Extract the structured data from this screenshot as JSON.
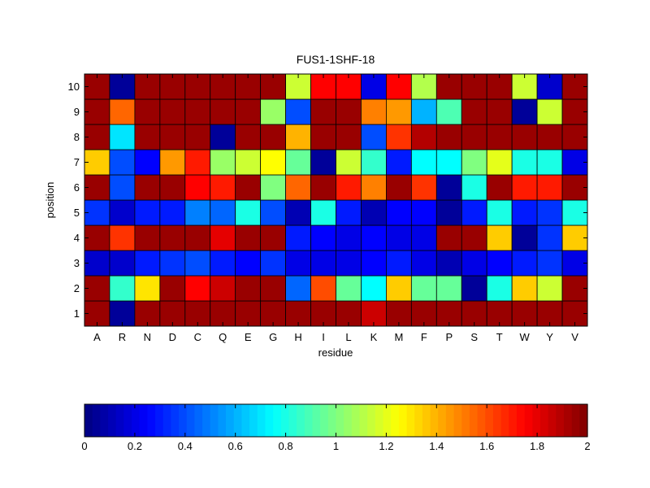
{
  "chart_data": {
    "type": "heatmap",
    "title": "FUS1-1SHF-18",
    "xlabel": "residue",
    "ylabel": "position",
    "x_categories": [
      "A",
      "R",
      "N",
      "D",
      "C",
      "Q",
      "E",
      "G",
      "H",
      "I",
      "L",
      "K",
      "M",
      "F",
      "P",
      "S",
      "T",
      "W",
      "Y",
      "V"
    ],
    "y_categories": [
      "1",
      "2",
      "3",
      "4",
      "5",
      "6",
      "7",
      "8",
      "9",
      "10"
    ],
    "values": [
      [
        1.95,
        0.05,
        1.95,
        1.95,
        1.95,
        1.95,
        1.95,
        1.95,
        1.95,
        1.95,
        1.95,
        1.85,
        1.95,
        1.95,
        1.95,
        1.95,
        1.95,
        1.95,
        1.95,
        1.95
      ],
      [
        1.95,
        0.85,
        1.3,
        1.95,
        1.75,
        1.85,
        1.95,
        1.95,
        0.45,
        1.6,
        0.95,
        0.75,
        1.35,
        0.95,
        0.95,
        0.05,
        0.8,
        1.35,
        1.15,
        1.95
      ],
      [
        0.15,
        0.15,
        0.3,
        0.35,
        0.4,
        0.3,
        0.25,
        0.35,
        0.2,
        0.2,
        0.2,
        0.25,
        0.3,
        0.2,
        0.1,
        0.2,
        0.25,
        0.3,
        0.35,
        0.2
      ],
      [
        1.95,
        1.65,
        1.95,
        1.95,
        1.95,
        1.8,
        1.95,
        1.95,
        0.3,
        0.25,
        0.2,
        0.25,
        0.2,
        0.2,
        1.95,
        1.95,
        1.35,
        0.05,
        0.35,
        1.35
      ],
      [
        0.35,
        0.15,
        0.3,
        0.3,
        0.5,
        0.45,
        0.8,
        0.4,
        0.1,
        0.8,
        0.3,
        0.1,
        0.25,
        0.25,
        0.05,
        0.3,
        0.8,
        0.3,
        0.35,
        0.8
      ],
      [
        1.95,
        0.4,
        1.95,
        1.95,
        1.75,
        1.7,
        1.95,
        1.0,
        1.55,
        1.95,
        1.7,
        1.5,
        1.95,
        1.65,
        0.05,
        0.8,
        1.95,
        1.7,
        1.7,
        1.95
      ],
      [
        1.35,
        0.4,
        0.25,
        1.45,
        1.7,
        1.05,
        1.15,
        1.25,
        0.95,
        0.05,
        1.15,
        0.85,
        0.3,
        0.75,
        0.75,
        1.0,
        1.2,
        0.8,
        0.8,
        0.2
      ],
      [
        1.95,
        0.7,
        1.95,
        1.95,
        1.95,
        0.05,
        1.95,
        1.95,
        1.4,
        1.95,
        1.95,
        0.4,
        1.65,
        1.9,
        1.95,
        1.95,
        1.95,
        1.95,
        1.95,
        1.95
      ],
      [
        1.95,
        1.55,
        1.95,
        1.95,
        1.95,
        1.95,
        1.95,
        1.05,
        0.4,
        1.95,
        1.95,
        1.5,
        1.45,
        0.6,
        0.9,
        1.95,
        1.95,
        0.05,
        1.15,
        1.95
      ],
      [
        1.95,
        0.05,
        1.95,
        1.95,
        1.95,
        1.95,
        1.95,
        1.95,
        1.15,
        1.75,
        1.75,
        0.2,
        1.75,
        1.1,
        1.95,
        1.95,
        1.95,
        1.15,
        0.15,
        1.95
      ]
    ],
    "colorbar": {
      "range": [
        0,
        2
      ],
      "tick_labels": [
        "0",
        "0.2",
        "0.4",
        "0.6",
        "0.8",
        "1",
        "1.2",
        "1.4",
        "1.6",
        "1.8",
        "2"
      ],
      "levels": 64
    },
    "colormap": "jet",
    "grid": false
  }
}
